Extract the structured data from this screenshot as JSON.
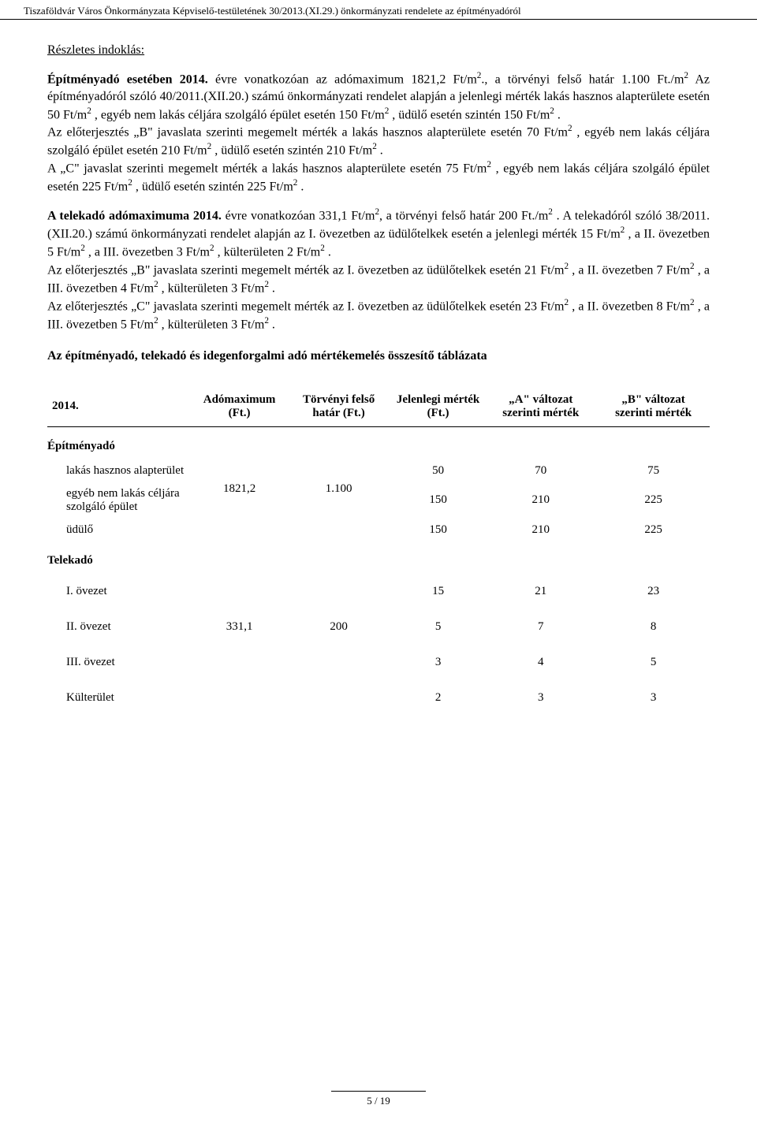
{
  "header": "Tiszaföldvár Város Önkormányzata Képviselő-testületének 30/2013.(XI.29.) önkormányzati rendelete az építményadóról",
  "detail_heading": "Részletes indoklás:",
  "p1_html": "<span class=\"bold\">Építményadó esetében 2014.</span> évre vonatkozóan az adómaximum 1821,2 Ft/m<sup>2</sup>., a törvényi felső határ 1.100 Ft./m<sup>2</sup>  Az építményadóról szóló 40/2011.(XII.20.) számú önkormányzati rendelet alapján a jelenlegi mérték lakás hasznos alapterülete esetén 50 Ft/m<sup>2</sup> , egyéb nem lakás céljára szolgáló épület esetén 150 Ft/m<sup>2</sup> , üdülő esetén szintén 150 Ft/m<sup>2</sup> .<br>Az előterjesztés „B\" javaslata szerinti megemelt mérték a lakás hasznos alapterülete esetén 70 Ft/m<sup>2</sup> , egyéb nem lakás céljára szolgáló épület esetén 210 Ft/m<sup>2</sup> , üdülő esetén szintén 210 Ft/m<sup>2</sup> .<br>A „C\" javaslat szerinti megemelt mérték a lakás hasznos alapterülete esetén 75 Ft/m<sup>2</sup> , egyéb nem lakás céljára szolgáló épület esetén 225 Ft/m<sup>2</sup> , üdülő esetén szintén 225 Ft/m<sup>2</sup> .",
  "p2_html": "<span class=\"bold\">A telekadó adómaximuma 2014.</span> évre vonatkozóan 331,1 Ft/m<sup>2</sup>, a törvényi felső határ 200 Ft./m<sup>2</sup> . A telekadóról szóló 38/2011.(XII.20.) számú önkormányzati rendelet alapján az I. övezetben az üdülőtelkek esetén a jelenlegi mérték 15 Ft/m<sup>2</sup> , a II. övezetben 5 Ft/m<sup>2</sup> , a III. övezetben 3 Ft/m<sup>2</sup> , külterületen 2 Ft/m<sup>2</sup> .<br>Az előterjesztés „B\" javaslata szerinti megemelt mérték az I. övezetben az üdülőtelkek esetén 21 Ft/m<sup>2</sup> , a II. övezetben 7 Ft/m<sup>2</sup> , a III. övezetben 4 Ft/m<sup>2</sup> , külterületen 3 Ft/m<sup>2</sup> .<br>Az előterjesztés „C\" javaslata szerinti megemelt mérték az I. övezetben az üdülőtelkek esetén 23 Ft/m<sup>2</sup> , a II. övezetben 8 Ft/m<sup>2</sup> , a III. övezetben 5 Ft/m<sup>2</sup> , külterületen 3 Ft/m<sup>2</sup> .",
  "table_title": "Az építményadó, telekadó és idegenforgalmi adó mértékemelés összesítő táblázata",
  "table": {
    "columns": [
      "2014.",
      "Adómaximum (Ft.)",
      "Törvényi felső határ (Ft.)",
      "Jelenlegi mérték (Ft.)",
      "„A\" változat szerinti mérték",
      "„B\" változat szerinti mérték"
    ],
    "groups": [
      {
        "label": "Építményadó",
        "adomax": "1821,2",
        "felso": "1.100",
        "rows": [
          {
            "label": "lakás hasznos alapterület",
            "current": "50",
            "a": "70",
            "b": "75"
          },
          {
            "label": "egyéb nem lakás céljára szolgáló épület",
            "current": "150",
            "a": "210",
            "b": "225"
          },
          {
            "label": "üdülő",
            "current": "150",
            "a": "210",
            "b": "225"
          }
        ]
      },
      {
        "label": "Telekadó",
        "adomax": "331,1",
        "felso": "200",
        "rows": [
          {
            "label": "I. övezet",
            "current": "15",
            "a": "21",
            "b": "23"
          },
          {
            "label": "II. övezet",
            "current": "5",
            "a": "7",
            "b": "8"
          },
          {
            "label": "III. övezet",
            "current": "3",
            "a": "4",
            "b": "5"
          },
          {
            "label": "Külterület",
            "current": "2",
            "a": "3",
            "b": "3"
          }
        ]
      }
    ]
  },
  "page_num": "5 / 19"
}
